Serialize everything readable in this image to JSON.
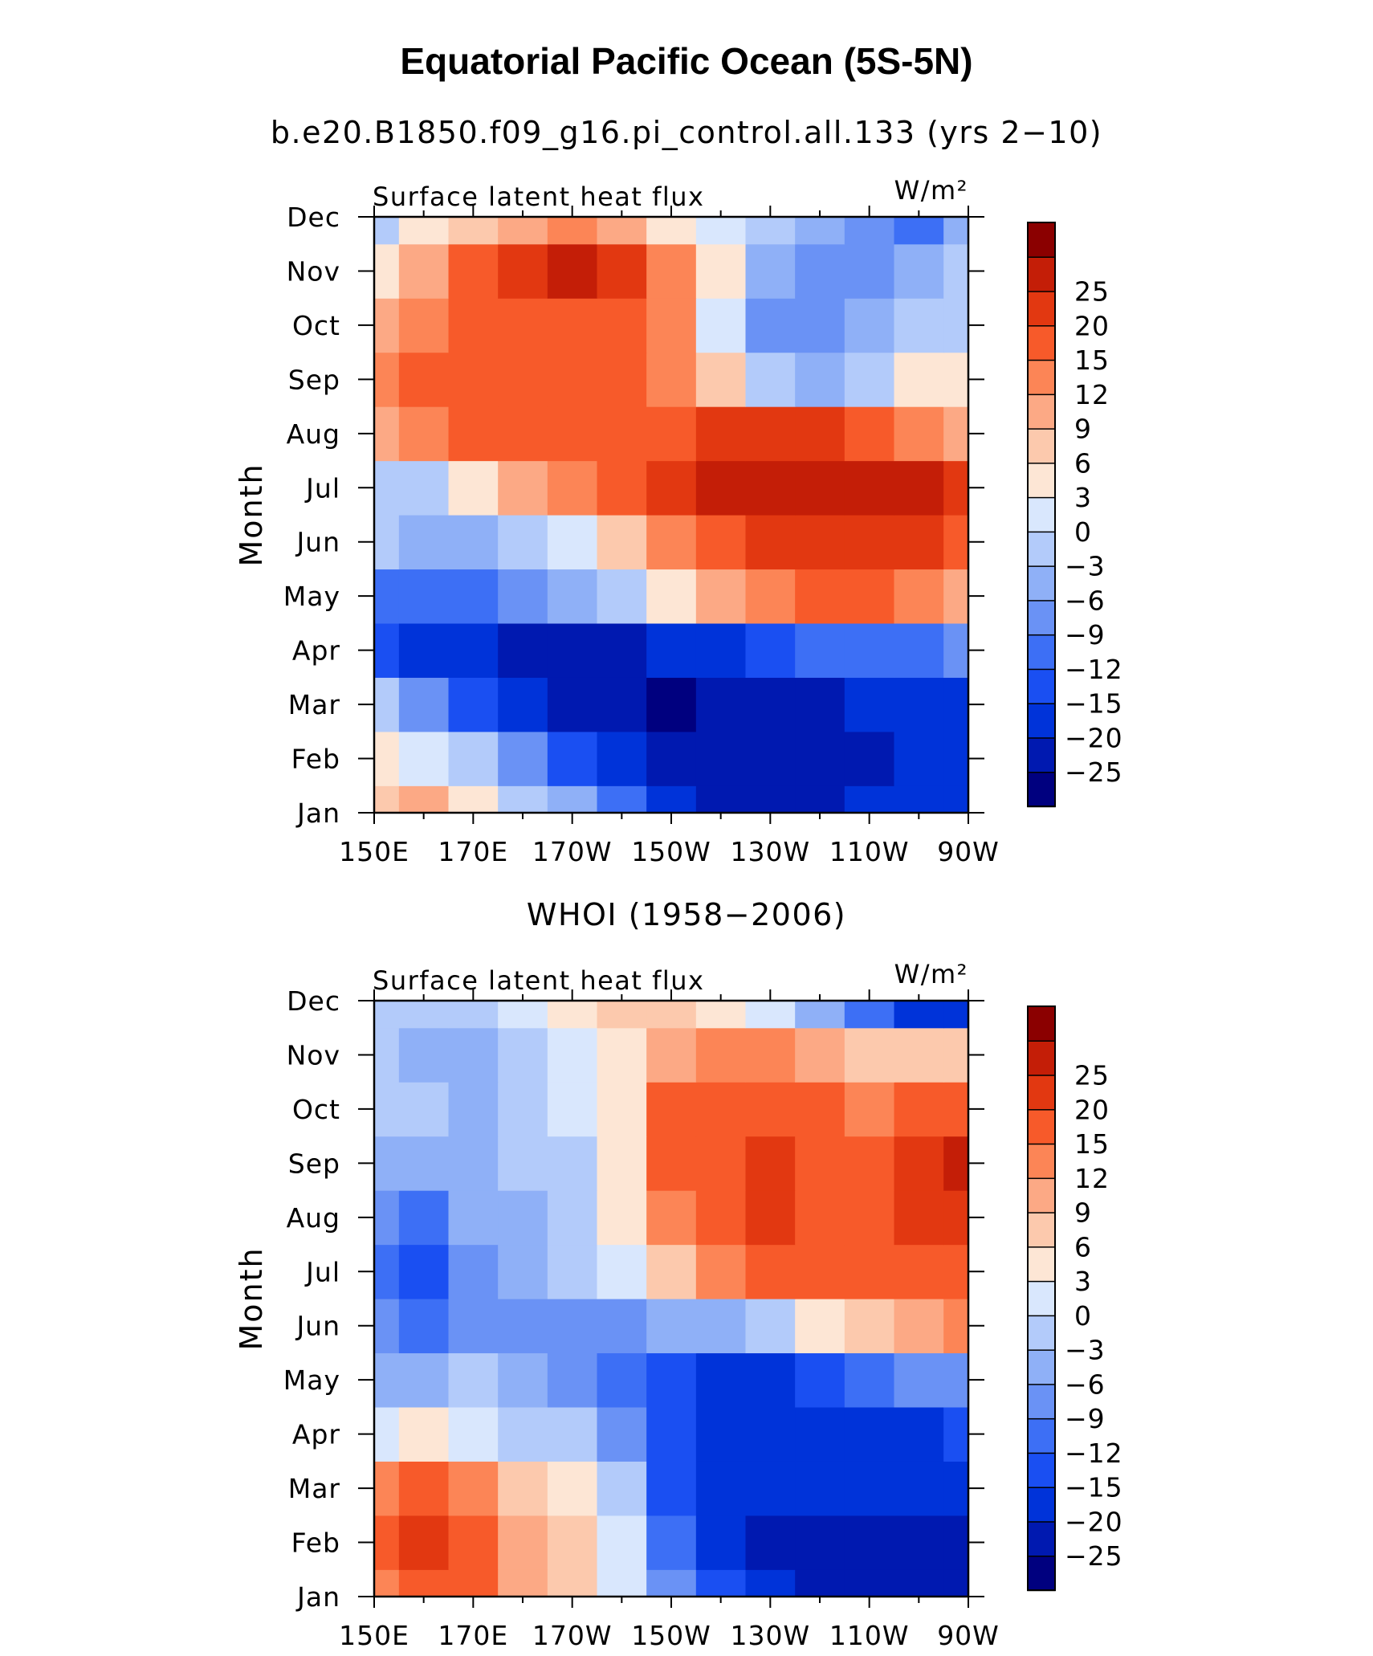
{
  "figure": {
    "title": "Equatorial Pacific Ocean (5S-5N)"
  },
  "colorbar": {
    "colors": [
      "#00007f",
      "#0019b0",
      "#0033d9",
      "#1a4ff2",
      "#3d6ff5",
      "#6a92f5",
      "#8fb0f7",
      "#b3cbfa",
      "#d9e7fd",
      "#fde6d5",
      "#fcc9ad",
      "#fca985",
      "#fc8556",
      "#f75a2a",
      "#e23811",
      "#c41e07",
      "#8b0000"
    ],
    "labels": [
      "-25",
      "-20",
      "-15",
      "-12",
      "-9",
      "-6",
      "-3",
      "0",
      "3",
      "6",
      "9",
      "12",
      "15",
      "20",
      "25"
    ]
  },
  "chart_data": [
    {
      "type": "heatmap",
      "title": "b.e20.B1850.f09_g16.pi_control.all.133 (yrs 2-10)",
      "left_label": "Surface latent heat flux",
      "units_label": "W/m²",
      "ylabel": "Month",
      "xlabel": "",
      "x_tick_labels": [
        "150E",
        "170E",
        "170W",
        "150W",
        "130W",
        "110W",
        "90W"
      ],
      "y_tick_labels": [
        "Jan",
        "Feb",
        "Mar",
        "Apr",
        "May",
        "Jun",
        "Jul",
        "Aug",
        "Sep",
        "Oct",
        "Nov",
        "Dec"
      ],
      "x": [
        150,
        160,
        170,
        180,
        190,
        200,
        210,
        220,
        230,
        240,
        250,
        260,
        270
      ],
      "y": [
        "Jan",
        "Feb",
        "Mar",
        "Apr",
        "May",
        "Jun",
        "Jul",
        "Aug",
        "Sep",
        "Oct",
        "Nov",
        "Dec"
      ],
      "values": [
        [
          6,
          9,
          5,
          -1,
          -6,
          -12,
          -18,
          -22,
          -25,
          -22,
          -20,
          -20,
          -18
        ],
        [
          4,
          2,
          -3,
          -9,
          -15,
          -20,
          -22,
          -25,
          -25,
          -22,
          -22,
          -20,
          -20
        ],
        [
          -3,
          -8,
          -15,
          -20,
          -25,
          -25,
          -26,
          -25,
          -22,
          -21,
          -20,
          -20,
          -18
        ],
        [
          -15,
          -18,
          -20,
          -22,
          -22,
          -22,
          -20,
          -18,
          -15,
          -12,
          -10,
          -10,
          -9
        ],
        [
          -12,
          -12,
          -12,
          -9,
          -6,
          -3,
          3,
          9,
          12,
          15,
          15,
          12,
          9
        ],
        [
          -3,
          -6,
          -5,
          -3,
          0,
          6,
          12,
          18,
          20,
          22,
          22,
          20,
          18
        ],
        [
          -3,
          -2,
          3,
          9,
          12,
          15,
          20,
          25,
          26,
          26,
          26,
          25,
          20
        ],
        [
          9,
          12,
          15,
          15,
          18,
          15,
          18,
          22,
          22,
          20,
          15,
          12,
          9
        ],
        [
          12,
          15,
          15,
          15,
          15,
          15,
          12,
          6,
          -3,
          -6,
          -3,
          3,
          3
        ],
        [
          9,
          12,
          15,
          15,
          15,
          15,
          12,
          0,
          -9,
          -9,
          -6,
          -3,
          -3
        ],
        [
          3,
          9,
          15,
          20,
          25,
          20,
          12,
          3,
          -6,
          -9,
          -9,
          -6,
          -3
        ],
        [
          -3,
          3,
          6,
          9,
          12,
          9,
          3,
          0,
          -3,
          -6,
          -9,
          -12,
          -6
        ]
      ]
    },
    {
      "type": "heatmap",
      "title": "WHOI (1958-2006)",
      "left_label": "Surface latent heat flux",
      "units_label": "W/m²",
      "ylabel": "Month",
      "xlabel": "",
      "x_tick_labels": [
        "150E",
        "170E",
        "170W",
        "150W",
        "130W",
        "110W",
        "90W"
      ],
      "y_tick_labels": [
        "Jan",
        "Feb",
        "Mar",
        "Apr",
        "May",
        "Jun",
        "Jul",
        "Aug",
        "Sep",
        "Oct",
        "Nov",
        "Dec"
      ],
      "x": [
        150,
        160,
        170,
        180,
        190,
        200,
        210,
        220,
        230,
        240,
        250,
        260,
        270
      ],
      "y": [
        "Jan",
        "Feb",
        "Mar",
        "Apr",
        "May",
        "Jun",
        "Jul",
        "Aug",
        "Sep",
        "Oct",
        "Nov",
        "Dec"
      ],
      "values": [
        [
          12,
          15,
          15,
          9,
          6,
          0,
          -9,
          -15,
          -20,
          -22,
          -22,
          -25,
          -25
        ],
        [
          15,
          20,
          15,
          9,
          6,
          0,
          -12,
          -20,
          -22,
          -25,
          -25,
          -22,
          -22
        ],
        [
          12,
          15,
          12,
          6,
          3,
          -3,
          -15,
          -20,
          -20,
          -20,
          -20,
          -20,
          -18
        ],
        [
          0,
          3,
          0,
          -3,
          -3,
          -9,
          -15,
          -20,
          -20,
          -18,
          -18,
          -20,
          -15
        ],
        [
          -6,
          -6,
          -3,
          -6,
          -9,
          -12,
          -15,
          -20,
          -18,
          -15,
          -12,
          -9,
          -9
        ],
        [
          -9,
          -12,
          -9,
          -9,
          -9,
          -9,
          -6,
          -6,
          -3,
          3,
          6,
          9,
          12
        ],
        [
          -12,
          -15,
          -9,
          -6,
          -3,
          0,
          6,
          12,
          15,
          15,
          15,
          15,
          15
        ],
        [
          -9,
          -12,
          -6,
          -6,
          -3,
          3,
          12,
          15,
          20,
          15,
          15,
          20,
          20
        ],
        [
          -6,
          -6,
          -6,
          -3,
          -3,
          3,
          15,
          18,
          20,
          15,
          15,
          20,
          25
        ],
        [
          -3,
          -3,
          -6,
          -3,
          0,
          3,
          15,
          15,
          15,
          15,
          12,
          15,
          15
        ],
        [
          -3,
          -6,
          -6,
          -3,
          0,
          3,
          9,
          12,
          12,
          9,
          6,
          6,
          6
        ],
        [
          -3,
          -3,
          -3,
          0,
          3,
          6,
          6,
          3,
          0,
          -6,
          -12,
          -18,
          -20
        ]
      ]
    }
  ]
}
